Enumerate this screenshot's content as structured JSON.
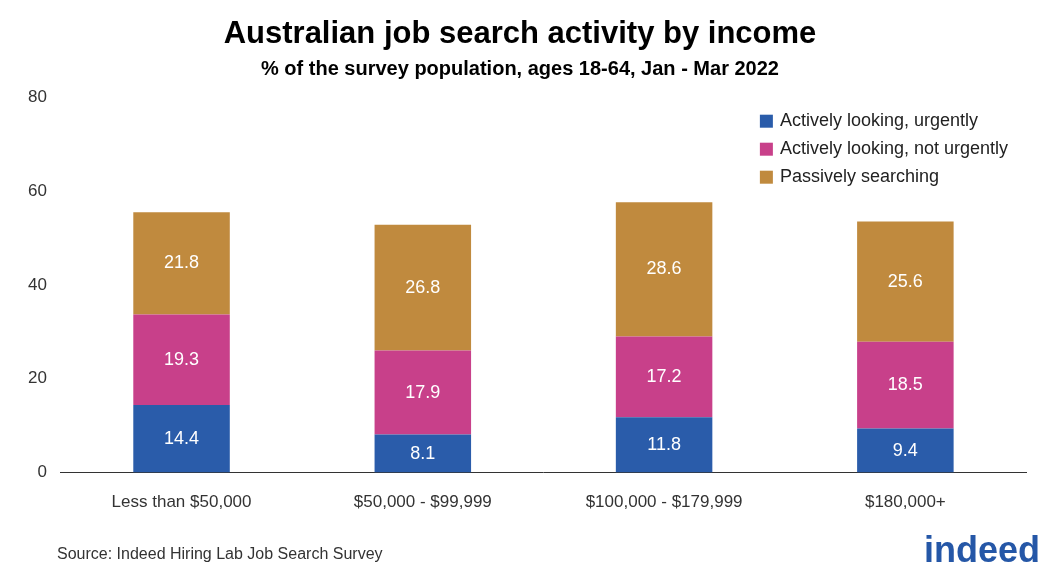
{
  "chart_data": {
    "type": "bar",
    "title": "Australian job search activity by income",
    "subtitle": "% of the survey population, ages 18-64, Jan - Mar 2022",
    "source": "Source: Indeed Hiring Lab Job Search Survey",
    "brand": "indeed",
    "categories": [
      "Less than $50,000",
      "$50,000 - $99,999",
      "$100,000 - $179,999",
      "$180,000+"
    ],
    "series": [
      {
        "name": "Actively looking, urgently",
        "color": "#2a5caa",
        "values": [
          14.4,
          8.1,
          11.8,
          9.4
        ]
      },
      {
        "name": "Actively looking, not urgently",
        "color": "#c8408a",
        "values": [
          19.3,
          17.9,
          17.2,
          18.5
        ]
      },
      {
        "name": "Passively searching",
        "color": "#c08a3e",
        "values": [
          21.8,
          26.8,
          28.6,
          25.6
        ]
      }
    ],
    "ylim": [
      0,
      80
    ],
    "yticks": [
      0,
      20,
      40,
      60,
      80
    ],
    "stacked": true,
    "data_labels": true,
    "grid": false,
    "legend": "top-right"
  }
}
